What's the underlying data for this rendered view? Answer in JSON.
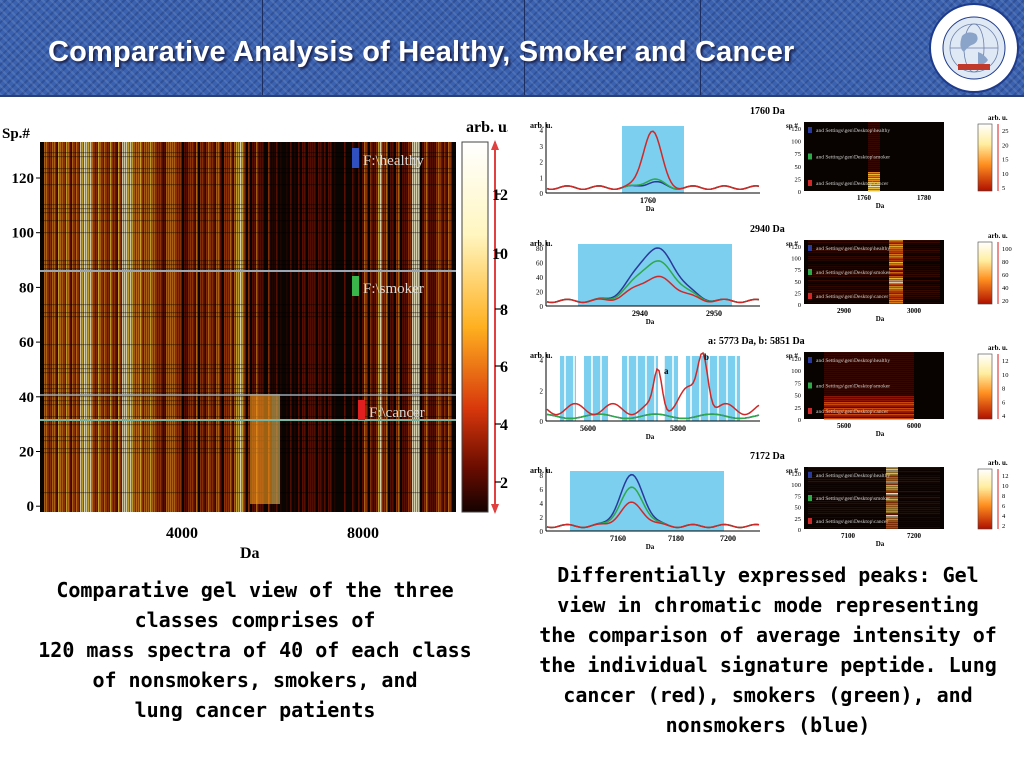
{
  "slide": {
    "title": "Comparative Analysis of Healthy, Smoker and Cancer",
    "logo_text": "INTERNATIONAL CENTRE FOR CHEMICAL SCIENCES",
    "logo_sub": "UNIVERSITY OF KARACHI",
    "logo_ribbon": "H.E.J. RESEARCH INSTITUTE OF CHEMISTRY"
  },
  "gel_main": {
    "ylabel": "Sp.#",
    "xlabel": "Da",
    "yticks": [
      "120",
      "100",
      "80",
      "60",
      "40",
      "20",
      "0"
    ],
    "xticks": [
      "4000",
      "8000"
    ],
    "colorbar_label": "arb. u.",
    "colorbar_ticks": [
      "12",
      "10",
      "8",
      "6",
      "4",
      "2"
    ],
    "group_labels": [
      "F:\\healthy",
      "F:\\smoker",
      "F:\\cancer"
    ],
    "group_colors": [
      "#3050c0",
      "#39b54a",
      "#e02020"
    ]
  },
  "panels": [
    {
      "title": "1760 Da",
      "spec_ylabel": "arb. u.",
      "spec_yticks": [
        "4",
        "3",
        "2",
        "1",
        "0"
      ],
      "spec_xticks": [
        "1760"
      ],
      "spec_xlabel": "Da",
      "gel_ylabel": "sp #",
      "gel_yticks": [
        "120",
        "100",
        "75",
        "50",
        "25",
        "0"
      ],
      "gel_xticks": [
        "1760",
        "1780"
      ],
      "gel_xlabel": "Da",
      "cb_label": "arb. u.",
      "cb_ticks": [
        "25",
        "20",
        "15",
        "10",
        "5"
      ],
      "row_labels": [
        "and Settings\\gen\\Desktop\\healthy",
        "and Settings\\gen\\Desktop\\smoker",
        "and Settings\\gen\\Desktop\\cancer"
      ]
    },
    {
      "title": "2940 Da",
      "spec_ylabel": "arb. u.",
      "spec_yticks": [
        "80",
        "60",
        "40",
        "20",
        "0"
      ],
      "spec_xticks": [
        "2940",
        "2950"
      ],
      "spec_xlabel": "Da",
      "gel_ylabel": "sp #",
      "gel_yticks": [
        "120",
        "100",
        "75",
        "50",
        "25",
        "0"
      ],
      "gel_xticks": [
        "2900",
        "3000"
      ],
      "gel_xlabel": "Da",
      "cb_label": "arb. u.",
      "cb_ticks": [
        "100",
        "80",
        "60",
        "40",
        "20"
      ],
      "row_labels": [
        "and Settings\\gen\\Desktop\\healthy",
        "and Settings\\gen\\Desktop\\smoker",
        "and Settings\\gen\\Desktop\\cancer"
      ]
    },
    {
      "title": "a: 5773 Da,  b: 5851 Da",
      "spec_ylabel": "arb. u.",
      "spec_yticks": [
        "4",
        "2",
        "0"
      ],
      "spec_xticks": [
        "5600",
        "5800"
      ],
      "spec_xlabel": "Da",
      "peak_a": "a",
      "peak_b": "b",
      "gel_ylabel": "sp #",
      "gel_yticks": [
        "120",
        "100",
        "75",
        "50",
        "25",
        "0"
      ],
      "gel_xticks": [
        "5600",
        "6000"
      ],
      "gel_xlabel": "Da",
      "cb_label": "arb. u.",
      "cb_ticks": [
        "12",
        "10",
        "8",
        "6",
        "4"
      ],
      "row_labels": [
        "and Settings\\gen\\Desktop\\healthy",
        "and Settings\\gen\\Desktop\\smoker",
        "and Settings\\gen\\Desktop\\cancer"
      ]
    },
    {
      "title": "7172 Da",
      "spec_ylabel": "arb. u.",
      "spec_yticks": [
        "8",
        "6",
        "4",
        "2",
        "0"
      ],
      "spec_xticks": [
        "7160",
        "7180",
        "7200"
      ],
      "spec_xlabel": "Da",
      "gel_ylabel": "sp #",
      "gel_yticks": [
        "120",
        "100",
        "75",
        "50",
        "25",
        "0"
      ],
      "gel_xticks": [
        "7100",
        "7200"
      ],
      "gel_xlabel": "Da",
      "cb_label": "arb. u.",
      "cb_ticks": [
        "12",
        "10",
        "8",
        "6",
        "4",
        "2"
      ],
      "row_labels": [
        "and Settings\\gen\\Desktop\\healthy",
        "and Settings\\gen\\Desktop\\smoker",
        "and Settings\\gen\\Desktop\\cancer"
      ]
    }
  ],
  "captions": {
    "left": [
      "Comparative gel view of the three",
      "classes comprises of",
      "120 mass spectra of 40 of each class",
      "of nonsmokers, smokers, and",
      "lung cancer patients"
    ],
    "right": [
      "Differentially expressed peaks: Gel",
      "view in chromatic mode representing",
      "the comparison of average intensity of",
      "the individual signature peptide. Lung",
      "cancer (red), smokers (green), and",
      "nonsmokers (blue)"
    ]
  },
  "colors": {
    "header_blue": "#3a62b0",
    "healthy": "#2a3a9a",
    "smoker": "#2fa84a",
    "cancer": "#d02828",
    "highlight": "#7ccfee"
  }
}
